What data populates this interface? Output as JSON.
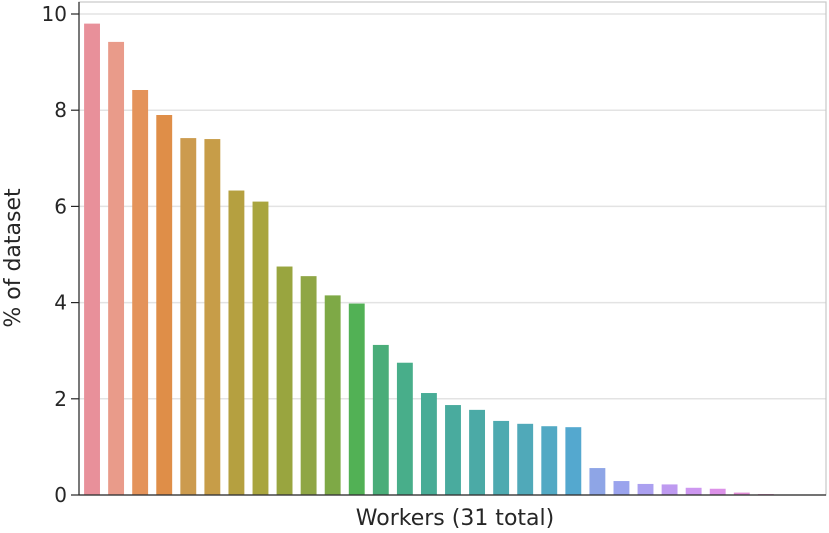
{
  "chart_data": {
    "type": "bar",
    "title": "",
    "xlabel": "Workers (31 total)",
    "ylabel": "% of dataset",
    "ylim": [
      0,
      10
    ],
    "yticks": [
      0,
      2,
      4,
      6,
      8,
      10
    ],
    "grid": "horizontal",
    "values": [
      9.8,
      9.42,
      8.42,
      7.9,
      7.42,
      7.4,
      6.33,
      6.1,
      4.75,
      4.55,
      4.15,
      3.98,
      3.12,
      2.75,
      2.12,
      1.87,
      1.77,
      1.54,
      1.48,
      1.43,
      1.41,
      0.56,
      0.29,
      0.23,
      0.22,
      0.15,
      0.13,
      0.05,
      0.02,
      0.01,
      0.01
    ],
    "colors": [
      "#e8909a",
      "#e99b8a",
      "#e4935a",
      "#df8e48",
      "#cc9b4e",
      "#c79d48",
      "#b5a040",
      "#a9a53e",
      "#99a53f",
      "#8fa645",
      "#7ea946",
      "#52b155",
      "#4aad79",
      "#48ae8a",
      "#48ac96",
      "#49ab9e",
      "#4baaa6",
      "#4eaab0",
      "#50a9b9",
      "#52a9c4",
      "#54a8cf",
      "#8ea5e6",
      "#9aa3ed",
      "#aba0f0",
      "#be9af0",
      "#cd97f0",
      "#dc91e8",
      "#e28ed7",
      "#e68dc8",
      "#e88cb9",
      "#e98bab"
    ]
  }
}
